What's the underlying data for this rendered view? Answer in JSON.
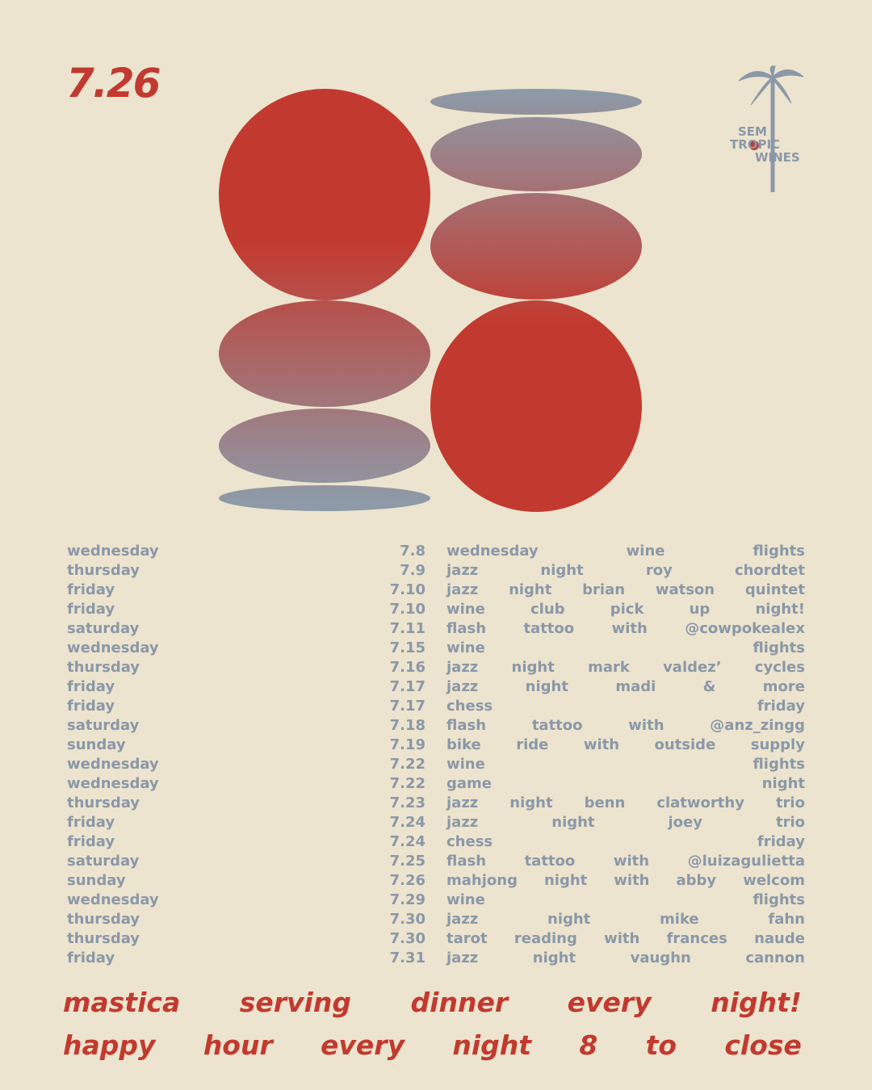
{
  "header": {
    "date": "7.26"
  },
  "logo": {
    "lines": [
      "SEM",
      "TROPIC",
      "WINES"
    ]
  },
  "events": [
    {
      "day": "wednesday",
      "date": "7.8",
      "words": [
        "wednesday",
        "wine",
        "flights"
      ]
    },
    {
      "day": "thursday",
      "date": "7.9",
      "words": [
        "jazz",
        "night",
        "roy",
        "chordtet"
      ]
    },
    {
      "day": "friday",
      "date": "7.10",
      "words": [
        "jazz",
        "night",
        "brian",
        "watson",
        "quintet"
      ]
    },
    {
      "day": "friday",
      "date": "7.10",
      "words": [
        "wine",
        "club",
        "pick",
        "up",
        "night!"
      ]
    },
    {
      "day": "saturday",
      "date": "7.11",
      "words": [
        "flash",
        "tattoo",
        "with",
        "@cowpokealex"
      ]
    },
    {
      "day": "wednesday",
      "date": "7.15",
      "words": [
        "wine",
        "flights"
      ]
    },
    {
      "day": "thursday",
      "date": "7.16",
      "words": [
        "jazz",
        "night",
        "mark",
        "valdez’",
        "cycles"
      ]
    },
    {
      "day": "friday",
      "date": "7.17",
      "words": [
        "jazz",
        "night",
        "madi",
        "&",
        "more"
      ]
    },
    {
      "day": "friday",
      "date": "7.17",
      "words": [
        "chess",
        "friday"
      ]
    },
    {
      "day": "saturday",
      "date": "7.18",
      "words": [
        "flash",
        "tattoo",
        "with",
        "@anz_zingg"
      ]
    },
    {
      "day": "sunday",
      "date": "7.19",
      "words": [
        "bike",
        "ride",
        "with",
        "outside",
        "supply"
      ]
    },
    {
      "day": "wednesday",
      "date": "7.22",
      "words": [
        "wine",
        "flights"
      ]
    },
    {
      "day": "wednesday",
      "date": "7.22",
      "words": [
        "game",
        "night"
      ]
    },
    {
      "day": "thursday",
      "date": "7.23",
      "words": [
        "jazz",
        "night",
        "benn",
        "clatworthy",
        "trio"
      ]
    },
    {
      "day": "friday",
      "date": "7.24",
      "words": [
        "jazz",
        "night",
        "joey",
        "trio"
      ]
    },
    {
      "day": "friday",
      "date": "7.24",
      "words": [
        "chess",
        "friday"
      ]
    },
    {
      "day": "saturday",
      "date": "7.25",
      "words": [
        "flash",
        "tattoo",
        "with",
        "@luizagulietta"
      ]
    },
    {
      "day": "sunday",
      "date": "7.26",
      "words": [
        "mahjong",
        "night",
        "with",
        "abby",
        "welcom"
      ]
    },
    {
      "day": "wednesday",
      "date": "7.29",
      "words": [
        "wine",
        "flights"
      ]
    },
    {
      "day": "thursday",
      "date": "7.30",
      "words": [
        "jazz",
        "night",
        "mike",
        "fahn"
      ]
    },
    {
      "day": "thursday",
      "date": "7.30",
      "words": [
        "tarot",
        "reading",
        "with",
        "frances",
        "naude"
      ]
    },
    {
      "day": "friday",
      "date": "7.31",
      "words": [
        "jazz",
        "night",
        "vaughn",
        "cannon"
      ]
    }
  ],
  "footer": {
    "lines": [
      [
        "mastica",
        "serving",
        "dinner",
        "every",
        "night!"
      ],
      [
        "happy",
        "hour",
        "every",
        "night",
        "8",
        "to",
        "close"
      ]
    ]
  }
}
